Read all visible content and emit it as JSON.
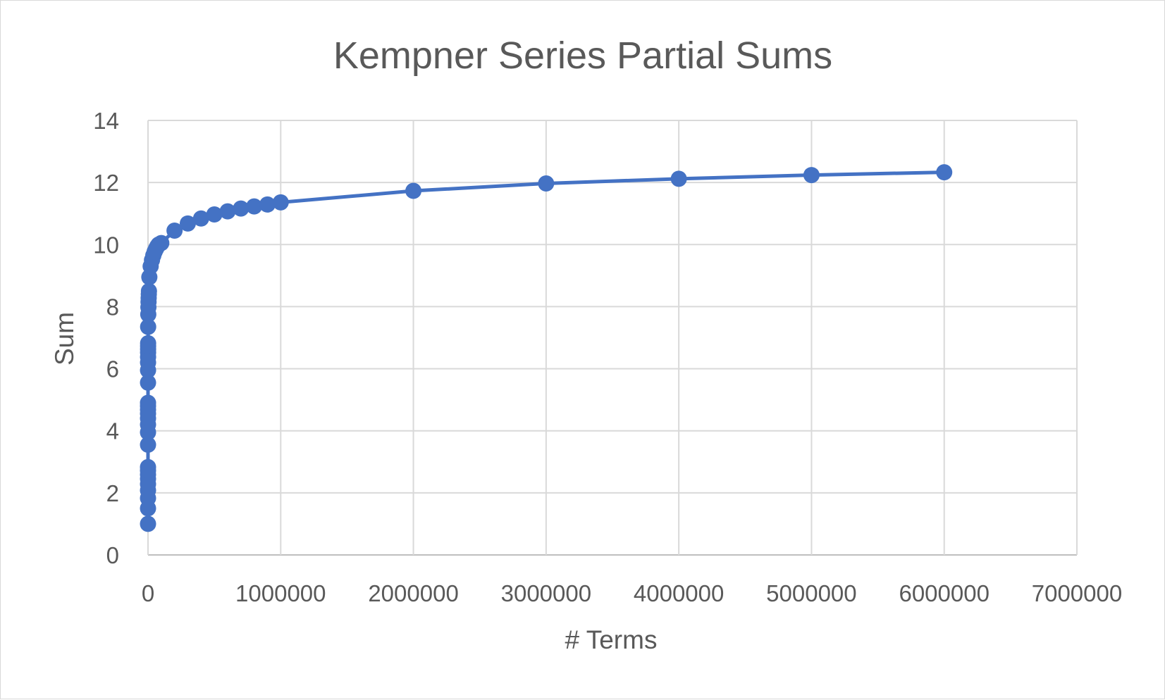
{
  "chart_data": {
    "type": "scatter",
    "title": "Kempner Series Partial Sums",
    "xlabel": "# Terms",
    "ylabel": "Sum",
    "xlim": [
      0,
      7000000
    ],
    "ylim": [
      0,
      14
    ],
    "x_ticks": [
      "0",
      "1000000",
      "2000000",
      "3000000",
      "4000000",
      "5000000",
      "6000000",
      "7000000"
    ],
    "y_ticks": [
      "0",
      "2",
      "4",
      "6",
      "8",
      "10",
      "12",
      "14"
    ],
    "grid": true,
    "legend": "none",
    "line_connected": true,
    "series": [
      {
        "color": "#4472c4",
        "marker": "circle",
        "points": [
          [
            1,
            1.0
          ],
          [
            2,
            1.5
          ],
          [
            3,
            1.83
          ],
          [
            4,
            2.08
          ],
          [
            5,
            2.28
          ],
          [
            6,
            2.45
          ],
          [
            7,
            2.59
          ],
          [
            8,
            2.72
          ],
          [
            9,
            2.83
          ],
          [
            10,
            3.55
          ],
          [
            20,
            3.95
          ],
          [
            30,
            4.2
          ],
          [
            40,
            4.4
          ],
          [
            50,
            4.55
          ],
          [
            60,
            4.68
          ],
          [
            70,
            4.8
          ],
          [
            80,
            4.9
          ],
          [
            100,
            5.55
          ],
          [
            200,
            5.95
          ],
          [
            300,
            6.2
          ],
          [
            400,
            6.38
          ],
          [
            500,
            6.52
          ],
          [
            600,
            6.63
          ],
          [
            700,
            6.73
          ],
          [
            800,
            6.82
          ],
          [
            1000,
            7.35
          ],
          [
            2000,
            7.75
          ],
          [
            3000,
            7.98
          ],
          [
            4000,
            8.15
          ],
          [
            5000,
            8.28
          ],
          [
            6000,
            8.4
          ],
          [
            7000,
            8.5
          ],
          [
            10000,
            8.95
          ],
          [
            20000,
            9.3
          ],
          [
            30000,
            9.5
          ],
          [
            40000,
            9.65
          ],
          [
            50000,
            9.77
          ],
          [
            60000,
            9.86
          ],
          [
            70000,
            9.94
          ],
          [
            80000,
            10.0
          ],
          [
            100000,
            10.05
          ],
          [
            200000,
            10.45
          ],
          [
            300000,
            10.68
          ],
          [
            400000,
            10.84
          ],
          [
            500000,
            10.97
          ],
          [
            600000,
            11.07
          ],
          [
            700000,
            11.16
          ],
          [
            800000,
            11.23
          ],
          [
            900000,
            11.29
          ],
          [
            1000000,
            11.36
          ],
          [
            2000000,
            11.73
          ],
          [
            3000000,
            11.97
          ],
          [
            4000000,
            12.12
          ],
          [
            5000000,
            12.24
          ],
          [
            6000000,
            12.33
          ]
        ]
      }
    ]
  }
}
